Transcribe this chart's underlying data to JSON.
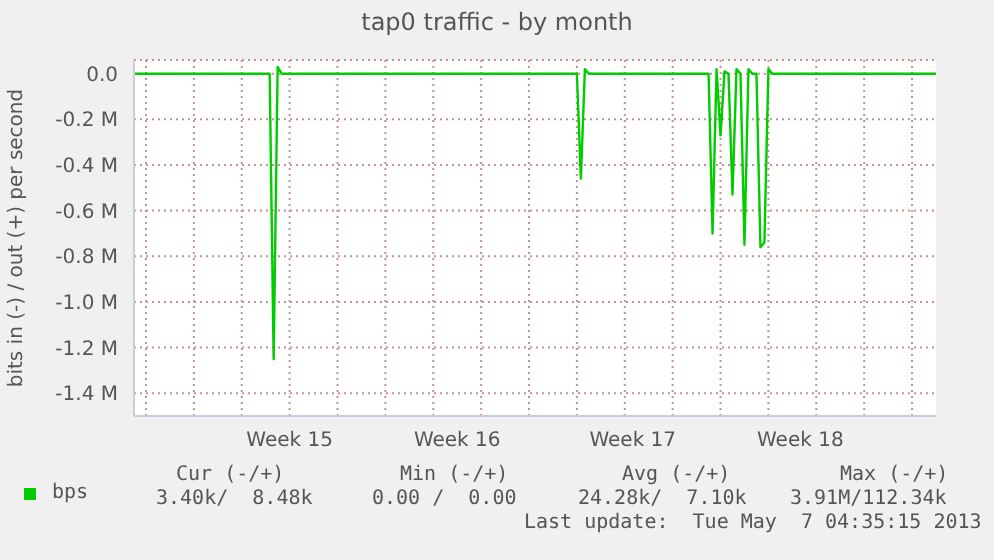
{
  "chart_data": {
    "type": "line",
    "title": "tap0 traffic - by month",
    "ylabel": "bits in (-) / out (+) per second",
    "categories": [
      null,
      null,
      null,
      null,
      null,
      null,
      null,
      null,
      null,
      null,
      null,
      null,
      null,
      null,
      null,
      null,
      null,
      null,
      null,
      null,
      null,
      null,
      null,
      null,
      null,
      null,
      null,
      null,
      null,
      null,
      null,
      null,
      null,
      null,
      null,
      null,
      null,
      null,
      null,
      "Week 15",
      null,
      null,
      null,
      null,
      null,
      null,
      null,
      null,
      null,
      null,
      null,
      null,
      null,
      null,
      null,
      null,
      null,
      null,
      null,
      null,
      null,
      null,
      null,
      null,
      null,
      null,
      null,
      null,
      null,
      null,
      null,
      null,
      null,
      null,
      null,
      null,
      null,
      null,
      null,
      null,
      null,
      "Week 16",
      null,
      null,
      null,
      null,
      null,
      null,
      null,
      null,
      null,
      null,
      null,
      null,
      null,
      null,
      null,
      null,
      null,
      null,
      null,
      null,
      null,
      null,
      null,
      null,
      null,
      null,
      null,
      null,
      null,
      null,
      null,
      null,
      null,
      null,
      null,
      null,
      null,
      null,
      null,
      null,
      null,
      null,
      null,
      "Week 17",
      null,
      null,
      null,
      null,
      null,
      null,
      null,
      null,
      null,
      null,
      null,
      null,
      null,
      null,
      null,
      null,
      null,
      null,
      null,
      null,
      null,
      null,
      null,
      null,
      null,
      null,
      null,
      null,
      null,
      null,
      null,
      null,
      null,
      null,
      null,
      null,
      null,
      null,
      null,
      null,
      null,
      "Week 18",
      null,
      null,
      null,
      null,
      null,
      null,
      null,
      null,
      null,
      null,
      null,
      null,
      null,
      null,
      null,
      null,
      null,
      null,
      null,
      null,
      null,
      null,
      null,
      null,
      null,
      null,
      null,
      null,
      null,
      null,
      null,
      null,
      null,
      null
    ],
    "series": [
      {
        "name": "bps",
        "color": "#00cc00",
        "values": [
          0,
          0,
          0,
          0,
          0,
          0,
          0,
          0,
          0,
          0,
          0,
          0,
          0,
          0,
          0,
          0,
          0,
          0,
          0,
          0,
          0,
          0,
          0,
          0,
          0,
          0,
          0,
          0,
          0,
          0,
          0,
          0,
          0,
          0,
          0,
          -1.25,
          0.03,
          0,
          0,
          0,
          0,
          0,
          0,
          0,
          0,
          0,
          0,
          0,
          0,
          0,
          0,
          0,
          0,
          0,
          0,
          0,
          0,
          0,
          0,
          0,
          0,
          0,
          0,
          0,
          0,
          0,
          0,
          0,
          0,
          0,
          0,
          0,
          0,
          0,
          0,
          0,
          0,
          0,
          0,
          0,
          0,
          0,
          0,
          0,
          0,
          0,
          0,
          0,
          0,
          0,
          0,
          0,
          0,
          0,
          0,
          0,
          0,
          0,
          0,
          0,
          0,
          0,
          0,
          0,
          0,
          0,
          0,
          0,
          0,
          0,
          0,
          0,
          -0.46,
          0.02,
          0,
          0,
          0,
          0,
          0,
          0,
          0,
          0,
          0,
          0,
          0,
          0,
          0,
          0,
          0,
          0,
          0,
          0,
          0,
          0,
          0,
          0,
          0,
          0,
          0,
          0,
          0,
          0,
          0,
          0,
          0,
          -0.7,
          0.02,
          -0.27,
          0.01,
          0,
          -0.53,
          0.02,
          0,
          -0.75,
          0.02,
          0,
          0,
          -0.76,
          -0.74,
          0.02,
          0,
          0,
          0,
          0,
          0,
          0,
          0,
          0,
          0,
          0,
          0,
          0,
          0,
          0,
          0,
          0,
          0,
          0,
          0,
          0,
          0,
          0,
          0,
          0,
          0,
          0,
          0,
          0,
          0,
          0,
          0,
          0,
          0,
          0,
          0,
          0,
          0,
          0,
          0,
          0,
          0,
          0
        ]
      }
    ],
    "ylim": [
      -1.5,
      0.06
    ],
    "yticks": [
      {
        "value": 0,
        "label": "0.0"
      },
      {
        "value": -0.2,
        "label": "-0.2 M"
      },
      {
        "value": -0.4,
        "label": "-0.4 M"
      },
      {
        "value": -0.6,
        "label": "-0.6 M"
      },
      {
        "value": -0.8,
        "label": "-0.8 M"
      },
      {
        "value": -1.0,
        "label": "-1.0 M"
      },
      {
        "value": -1.2,
        "label": "-1.2 M"
      },
      {
        "value": -1.4,
        "label": "-1.4 M"
      }
    ],
    "grid": true,
    "legend": "bottom left",
    "annotations": [
      "Cur (-/+)",
      "Min (-/+)",
      "Avg (-/+)",
      "Max (-/+)",
      "3.40k/  8.48k",
      "0.00 /  0.00",
      "24.28k/  7.10k",
      "3.91M/112.34k",
      "Last update:  Tue May  7 04:35:15 2013"
    ]
  }
}
